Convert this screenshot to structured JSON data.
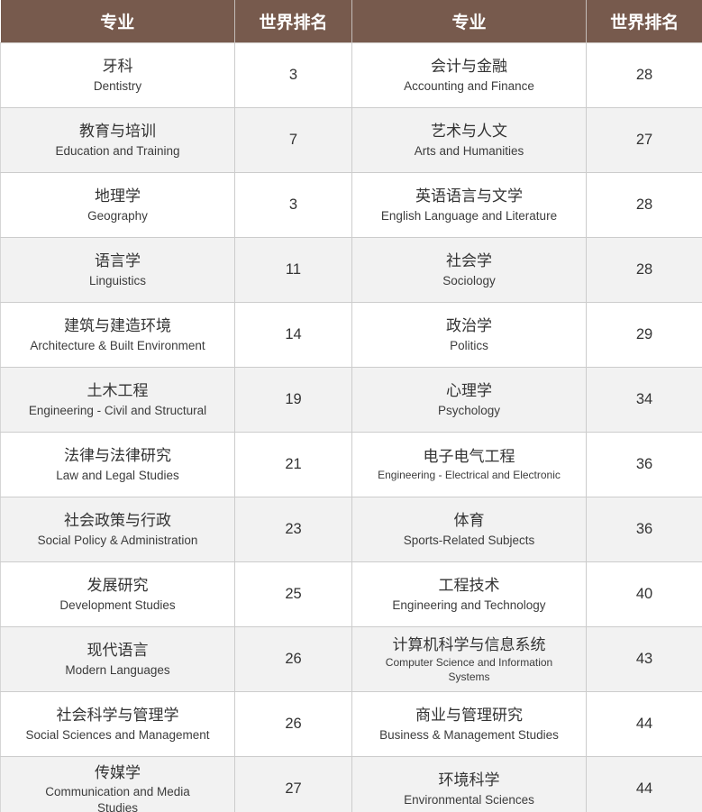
{
  "table": {
    "headers": [
      "专业",
      "世界排名",
      "专业",
      "世界排名"
    ],
    "rows": [
      {
        "l_zh": "牙科",
        "l_en": "Dentistry",
        "l_rank": "3",
        "r_zh": "会计与金融",
        "r_en": "Accounting and Finance",
        "r_rank": "28"
      },
      {
        "l_zh": "教育与培训",
        "l_en": "Education and Training",
        "l_rank": "7",
        "r_zh": "艺术与人文",
        "r_en": "Arts and Humanities",
        "r_rank": "27"
      },
      {
        "l_zh": "地理学",
        "l_en": "Geography",
        "l_rank": "3",
        "r_zh": "英语语言与文学",
        "r_en": "English Language and Literature",
        "r_rank": "28"
      },
      {
        "l_zh": "语言学",
        "l_en": "Linguistics",
        "l_rank": "11",
        "r_zh": "社会学",
        "r_en": "Sociology",
        "r_rank": "28"
      },
      {
        "l_zh": "建筑与建造环境",
        "l_en": "Architecture & Built Environment",
        "l_rank": "14",
        "r_zh": "政治学",
        "r_en": "Politics",
        "r_rank": "29"
      },
      {
        "l_zh": "土木工程",
        "l_en": "Engineering - Civil and Structural",
        "l_rank": "19",
        "r_zh": "心理学",
        "r_en": "Psychology",
        "r_rank": "34"
      },
      {
        "l_zh": "法律与法律研究",
        "l_en": "Law and Legal Studies",
        "l_rank": "21",
        "r_zh": "电子电气工程",
        "r_en": "Engineering - Electrical and Electronic",
        "r_rank": "36"
      },
      {
        "l_zh": "社会政策与行政",
        "l_en": "Social Policy & Administration",
        "l_rank": "23",
        "r_zh": "体育",
        "r_en": "Sports-Related Subjects",
        "r_rank": "36"
      },
      {
        "l_zh": "发展研究",
        "l_en": "Development Studies",
        "l_rank": "25",
        "r_zh": "工程技术",
        "r_en": "Engineering and Technology",
        "r_rank": "40"
      },
      {
        "l_zh": "现代语言",
        "l_en": "Modern Languages",
        "l_rank": "26",
        "r_zh": "计算机科学与信息系统",
        "r_en": "Computer Science and Information Systems",
        "r_rank": "43"
      },
      {
        "l_zh": "社会科学与管理学",
        "l_en": "Social Sciences and Management",
        "l_rank": "26",
        "r_zh": "商业与管理研究",
        "r_en": "Business & Management Studies",
        "r_rank": "44"
      },
      {
        "l_zh": "传媒学",
        "l_en": "Communication and Media Studies",
        "l_rank": "27",
        "r_zh": "环境科学",
        "r_en": "Environmental Sciences",
        "r_rank": "44"
      }
    ]
  },
  "colors": {
    "header_bg": "#775a4d",
    "header_text": "#ffffff",
    "row_alt_bg": "#f2f2f2",
    "border": "#cccccc",
    "bottom_border": "#8f8f8f",
    "body_text": "#333333"
  },
  "chart_data": {
    "type": "table",
    "columns": [
      "专业",
      "世界排名",
      "专业",
      "世界排名"
    ],
    "rows": [
      [
        "牙科 Dentistry",
        3,
        "会计与金融 Accounting and Finance",
        28
      ],
      [
        "教育与培训 Education and Training",
        7,
        "艺术与人文 Arts and Humanities",
        27
      ],
      [
        "地理学 Geography",
        3,
        "英语语言与文学 English Language and Literature",
        28
      ],
      [
        "语言学 Linguistics",
        11,
        "社会学 Sociology",
        28
      ],
      [
        "建筑与建造环境 Architecture & Built Environment",
        14,
        "政治学 Politics",
        29
      ],
      [
        "土木工程 Engineering - Civil and Structural",
        19,
        "心理学 Psychology",
        34
      ],
      [
        "法律与法律研究 Law and Legal Studies",
        21,
        "电子电气工程 Engineering - Electrical and Electronic",
        36
      ],
      [
        "社会政策与行政 Social Policy & Administration",
        23,
        "体育 Sports-Related Subjects",
        36
      ],
      [
        "发展研究 Development Studies",
        25,
        "工程技术 Engineering and Technology",
        40
      ],
      [
        "现代语言 Modern Languages",
        26,
        "计算机科学与信息系统 Computer Science and Information Systems",
        43
      ],
      [
        "社会科学与管理学 Social Sciences and Management",
        26,
        "商业与管理研究 Business & Management Studies",
        44
      ],
      [
        "传媒学 Communication and Media Studies",
        27,
        "环境科学 Environmental Sciences",
        44
      ]
    ]
  }
}
